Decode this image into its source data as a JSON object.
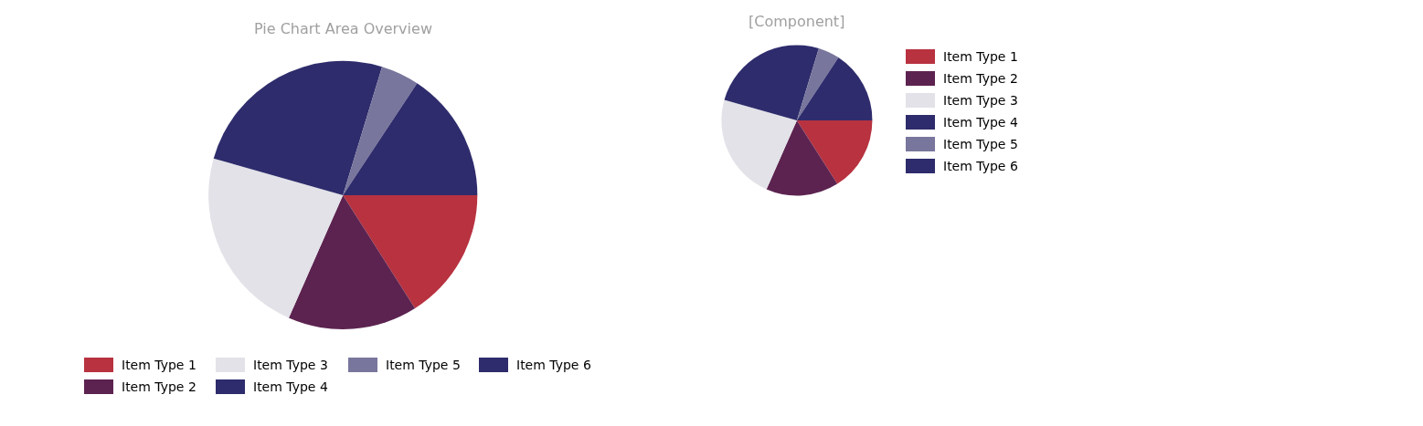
{
  "chart_data": [
    {
      "type": "pie",
      "title": "Pie Chart Area Overview",
      "categories": [
        "Item Type 1",
        "Item Type 2",
        "Item Type 3",
        "Item Type 4",
        "Item Type 5",
        "Item Type 6"
      ],
      "values": [
        16,
        15.6,
        22.8,
        25.3,
        4.6,
        15.7
      ],
      "colors": [
        "#b83240",
        "#5c2350",
        "#e2e2e8",
        "#2e2c6c",
        "#78769c",
        "#2e2c6c"
      ],
      "legend": "bottom"
    },
    {
      "type": "pie",
      "title": "[Component]",
      "categories": [
        "Item Type 1",
        "Item Type 2",
        "Item Type 3",
        "Item Type 4",
        "Item Type 5",
        "Item Type 6"
      ],
      "values": [
        16,
        15.6,
        22.8,
        25.3,
        4.6,
        15.7
      ],
      "colors": [
        "#b83240",
        "#5c2350",
        "#e2e2e8",
        "#2e2c6c",
        "#78769c",
        "#2e2c6c"
      ],
      "legend": "right"
    }
  ]
}
